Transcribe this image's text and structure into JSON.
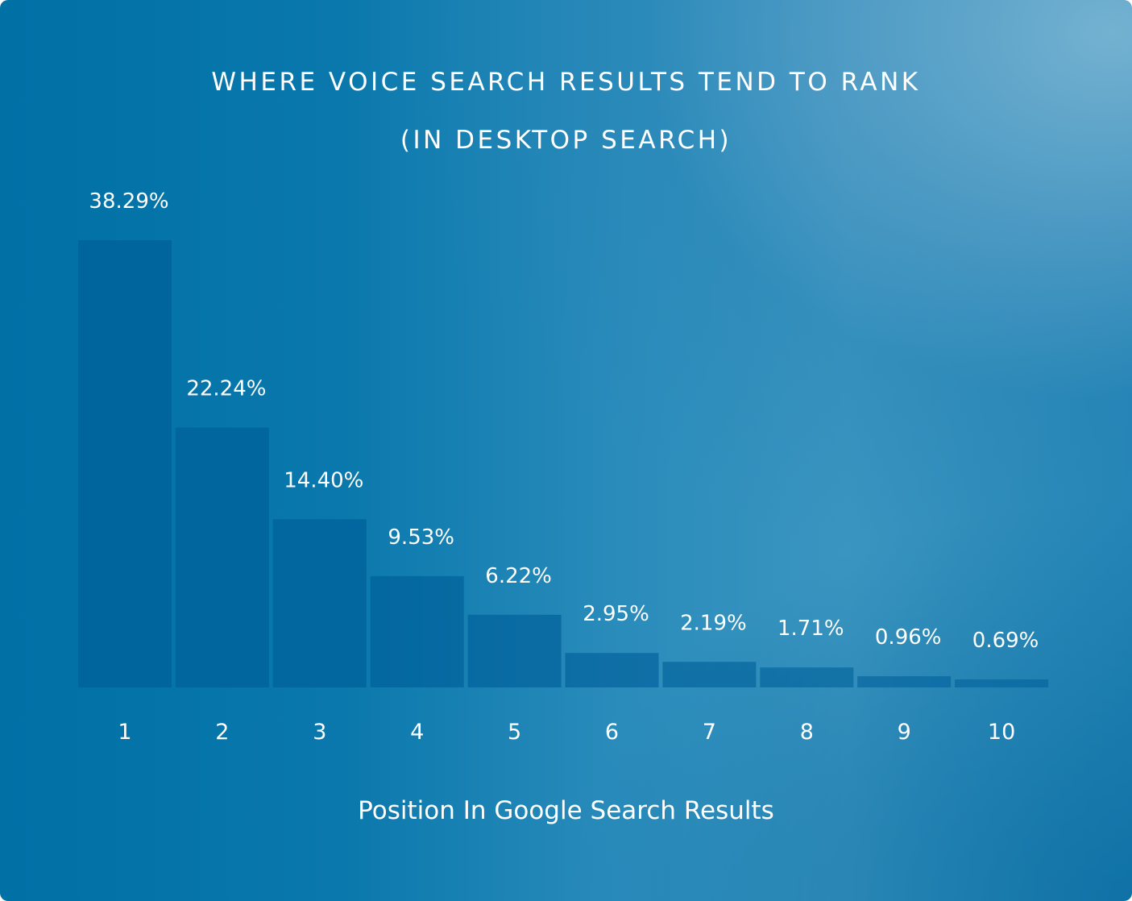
{
  "chart_data": {
    "type": "bar",
    "title": "WHERE VOICE SEARCH RESULTS TEND TO RANK",
    "subtitle": "(IN DESKTOP SEARCH)",
    "xlabel": "Position In Google Search Results",
    "ylabel": "",
    "categories": [
      "1",
      "2",
      "3",
      "4",
      "5",
      "6",
      "7",
      "8",
      "9",
      "10"
    ],
    "values": [
      38.29,
      22.24,
      14.4,
      9.53,
      6.22,
      2.95,
      2.19,
      1.71,
      0.96,
      0.69
    ],
    "data_labels": [
      "38.29%",
      "22.24%",
      "14.40%",
      "9.53%",
      "6.22%",
      "2.95%",
      "2.19%",
      "1.71%",
      "0.96%",
      "0.69%"
    ],
    "ylim": [
      0,
      38.29
    ],
    "grid": false,
    "colors": {
      "bar": "#00609a",
      "text": "#ffffff",
      "background": "#0072a6"
    }
  }
}
